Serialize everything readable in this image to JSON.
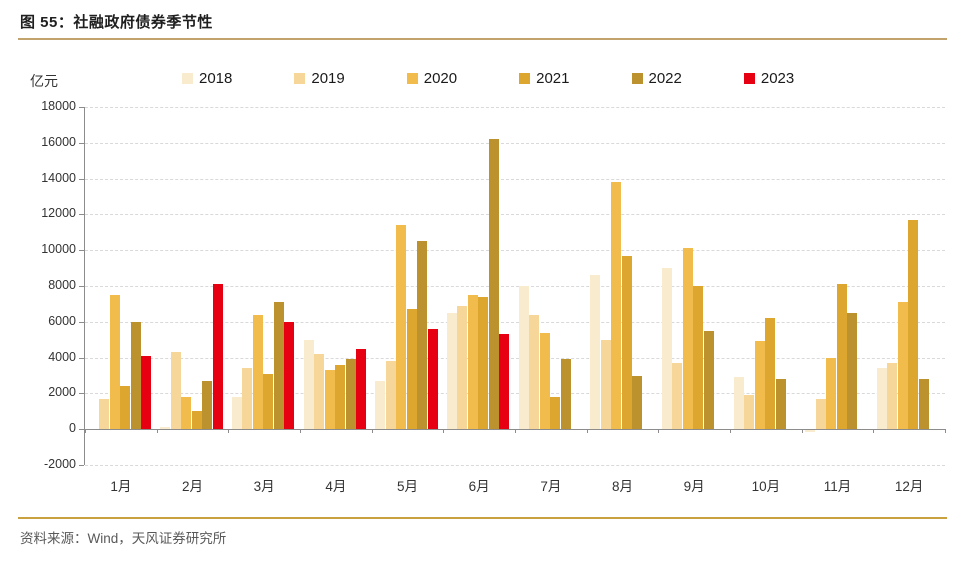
{
  "footer": {
    "source": "资料来源：Wind，天风证券研究所"
  },
  "chart_data": {
    "type": "bar",
    "title": "图 55：社融政府债券季节性",
    "unit_label": "亿元",
    "categories": [
      "1月",
      "2月",
      "3月",
      "4月",
      "5月",
      "6月",
      "7月",
      "8月",
      "9月",
      "10月",
      "11月",
      "12月"
    ],
    "series": [
      {
        "name": "2018",
        "color": "#F9EBCD",
        "values": [
          0,
          100,
          1800,
          5000,
          2700,
          6500,
          8000,
          8600,
          9000,
          2900,
          -100,
          3400
        ]
      },
      {
        "name": "2019",
        "color": "#F6D699",
        "values": [
          1700,
          4300,
          3400,
          4200,
          3800,
          6900,
          6400,
          5000,
          3700,
          1900,
          1700,
          3700
        ]
      },
      {
        "name": "2020",
        "color": "#F1BC4B",
        "values": [
          7500,
          1800,
          6400,
          3300,
          11400,
          7500,
          5400,
          13800,
          10100,
          4900,
          4000,
          7100
        ]
      },
      {
        "name": "2021",
        "color": "#DDA72F",
        "values": [
          2400,
          1000,
          3100,
          3600,
          6700,
          7400,
          1800,
          9700,
          8000,
          6200,
          8100,
          11700
        ]
      },
      {
        "name": "2022",
        "color": "#BB922D",
        "values": [
          6000,
          2700,
          7100,
          3900,
          10500,
          16200,
          3900,
          3000,
          5500,
          2800,
          6500,
          2800
        ]
      },
      {
        "name": "2023",
        "color": "#E60012",
        "values": [
          4100,
          8100,
          6000,
          4500,
          5600,
          5300,
          null,
          null,
          null,
          null,
          null,
          null
        ]
      }
    ],
    "ylim": [
      -2000,
      18000
    ],
    "ytick_step": 2000,
    "grid": true,
    "legend_position": "top"
  }
}
